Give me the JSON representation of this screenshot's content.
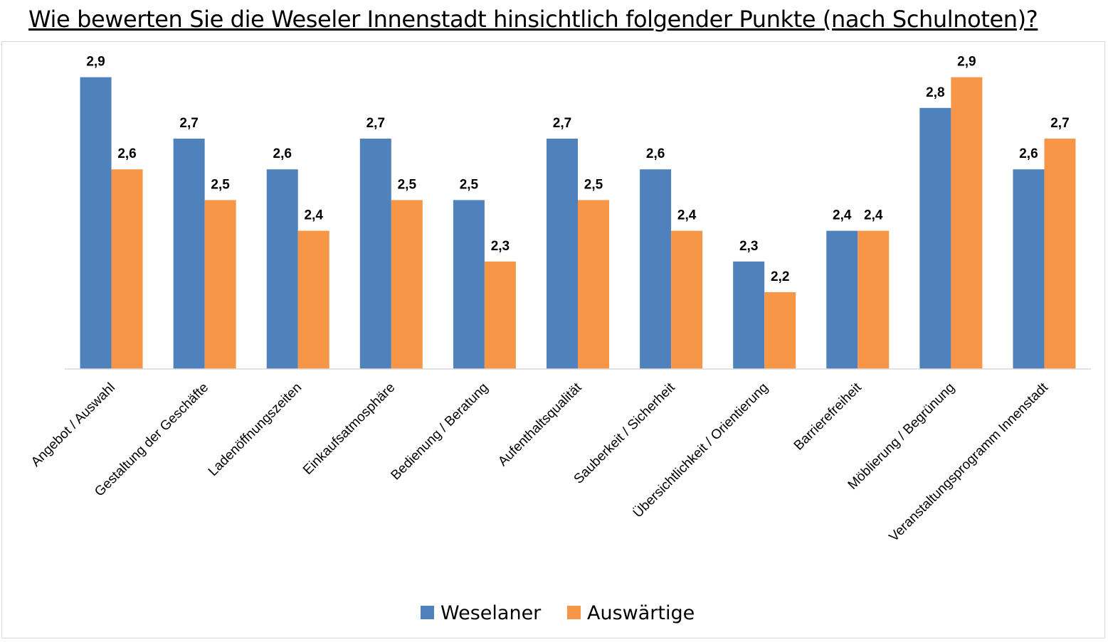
{
  "chart_data": {
    "type": "bar",
    "title": "Wie bewerten Sie die Weseler Innenstadt hinsichtlich folgender Punkte (nach Schulnoten)?",
    "categories": [
      "Angebot / Auswahl",
      "Gestaltung der Geschäfte",
      "Ladenöffnungszeiten",
      "Einkaufsatmosphäre",
      "Bedienung / Beratung",
      "Aufenthaltsqualität",
      "Sauberkeit / Sicherheit",
      "Übersichtlichkeit / Orientierung",
      "Barrierefreiheit",
      "Möblierung / Begrünung",
      "Veranstaltungsprogramm Innenstadt"
    ],
    "series": [
      {
        "name": "Weselaner",
        "color": "#4f81bd",
        "values": [
          2.9,
          2.7,
          2.6,
          2.7,
          2.5,
          2.7,
          2.6,
          2.3,
          2.4,
          2.8,
          2.6
        ],
        "labels": [
          "2,9",
          "2,7",
          "2,6",
          "2,7",
          "2,5",
          "2,7",
          "2,6",
          "2,3",
          "2,4",
          "2,8",
          "2,6"
        ]
      },
      {
        "name": "Auswärtige",
        "color": "#f79646",
        "values": [
          2.6,
          2.5,
          2.4,
          2.5,
          2.3,
          2.5,
          2.4,
          2.2,
          2.4,
          2.9,
          2.7
        ],
        "labels": [
          "2,6",
          "2,5",
          "2,4",
          "2,5",
          "2,3",
          "2,5",
          "2,4",
          "2,2",
          "2,4",
          "2,9",
          "2,7"
        ]
      }
    ],
    "xlabel": "",
    "ylabel": "",
    "ylim": [
      1.95,
      2.95
    ],
    "grid": false,
    "legend": "bottom"
  }
}
